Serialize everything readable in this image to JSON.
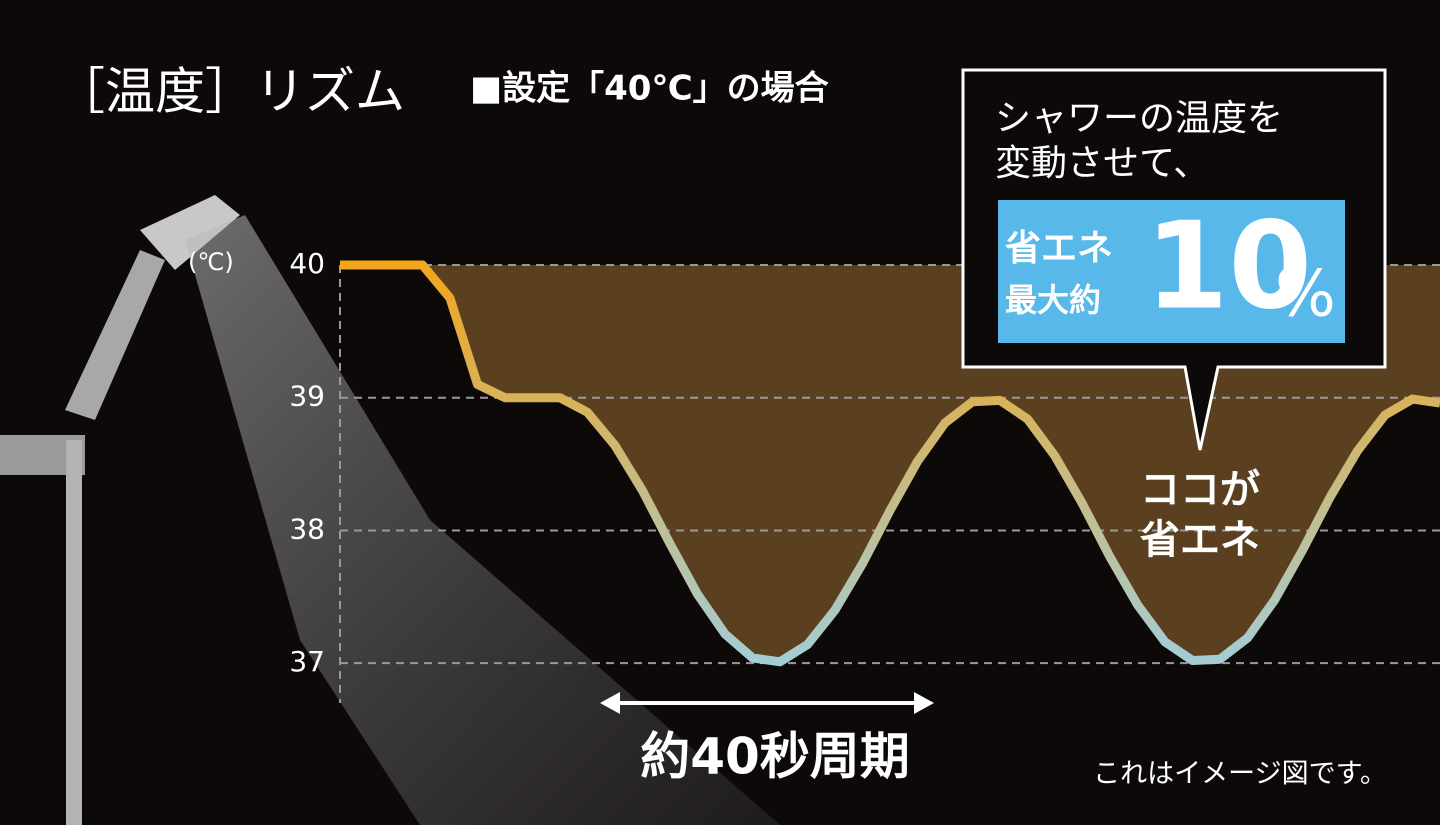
{
  "chart_data": {
    "type": "line",
    "title": "［温度］リズム",
    "subtitle": "■設定「40℃」の場合",
    "y_unit": "(℃)",
    "categories": [
      null,
      null,
      null,
      null,
      null,
      null,
      null,
      null,
      null,
      null,
      null,
      null,
      null,
      null,
      null,
      null,
      null,
      null,
      null,
      null,
      null,
      null,
      null,
      null,
      null,
      null,
      null,
      null,
      null,
      null,
      null,
      null,
      null,
      null,
      null,
      null,
      null,
      null,
      null,
      null,
      null
    ],
    "series": [
      {
        "values": [
          40,
          40,
          40,
          40,
          39.75,
          39.1,
          39,
          39,
          39,
          38.89,
          38.64,
          38.3,
          37.9,
          37.52,
          37.22,
          37.04,
          37.01,
          37.14,
          37.4,
          37.75,
          38.15,
          38.52,
          38.81,
          38.97,
          38.98,
          38.84,
          38.56,
          38.2,
          37.8,
          37.44,
          37.16,
          37.02,
          37.03,
          37.19,
          37.48,
          37.85,
          38.25,
          38.6,
          38.87,
          38.99,
          38.96
        ],
        "gradient": [
          "#f3a51c",
          "#a3cdd6"
        ],
        "fill": "#5b4020"
      }
    ],
    "ylim": [
      36.7,
      40
    ],
    "yticks": [
      37,
      38,
      39,
      40
    ],
    "grid": true,
    "callout": {
      "lines": [
        "シャワーの温度を",
        "変動させて、"
      ],
      "badge_lines": [
        "省エネ",
        "最大約"
      ],
      "badge_number": "10",
      "badge_unit": "%",
      "badge_color": "#58b8ea"
    },
    "pointer": [
      "ココが",
      "省エネ"
    ],
    "period_label": "約40秒周期",
    "note": "これはイメージ図です。"
  }
}
